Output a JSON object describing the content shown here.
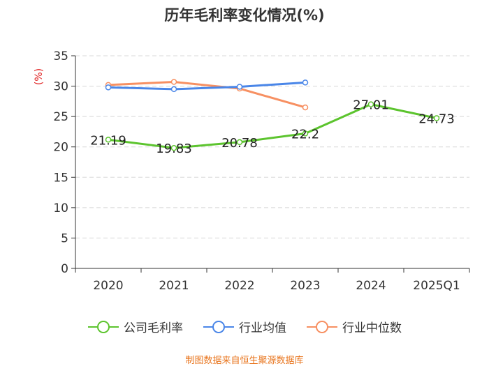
{
  "chart_data": {
    "type": "line",
    "title": "历年毛利率变化情况(%)",
    "ylabel": "(%)",
    "xlabel": "",
    "categories": [
      "2020",
      "2021",
      "2022",
      "2023",
      "2024",
      "2025Q1"
    ],
    "ylim": [
      0,
      35
    ],
    "yticks": [
      0,
      5,
      10,
      15,
      20,
      25,
      30,
      35
    ],
    "grid": true,
    "legend_position": "bottom",
    "series": [
      {
        "name": "公司毛利率",
        "color": "#5cc42e",
        "labels": true,
        "values": [
          21.19,
          19.83,
          20.78,
          22.2,
          27.01,
          24.73
        ],
        "value_labels": [
          "21.19",
          "19.83",
          "20.78",
          "22.2",
          "27.01",
          "24.73"
        ]
      },
      {
        "name": "行业均值",
        "color": "#4a86e8",
        "labels": false,
        "values": [
          29.8,
          29.5,
          29.9,
          30.6,
          null,
          null
        ]
      },
      {
        "name": "行业中位数",
        "color": "#f79062",
        "labels": false,
        "values": [
          30.2,
          30.7,
          29.6,
          26.5,
          null,
          null
        ]
      }
    ]
  },
  "source": "制图数据来自恒生聚源数据库"
}
